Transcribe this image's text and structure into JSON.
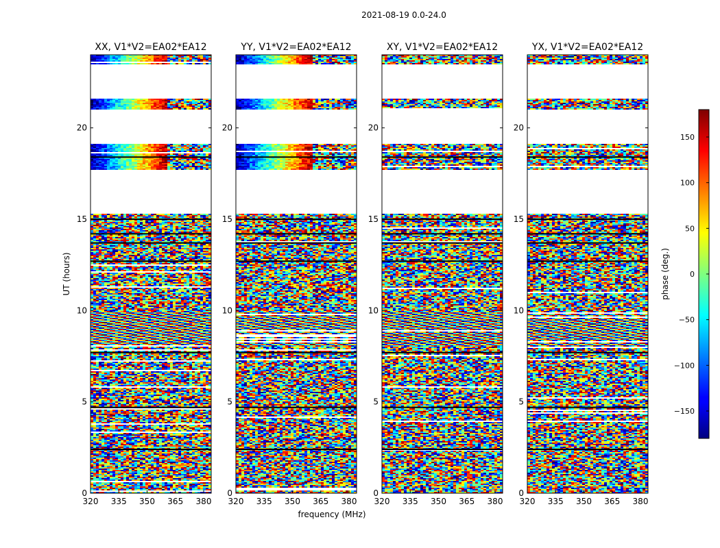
{
  "figure": {
    "suptitle": "2021-08-19 0.0-24.0",
    "xlabel": "frequency (MHz)",
    "ylabel": "UT (hours)"
  },
  "colorbar": {
    "label": "phase (deg.)",
    "range": [
      -180,
      180
    ],
    "ticks": [
      150,
      100,
      50,
      0,
      -50,
      -100,
      -150
    ],
    "tick_labels": [
      "150",
      "100",
      "50",
      "0",
      "−50",
      "−100",
      "−150"
    ],
    "colormap": "jet"
  },
  "chart_data": {
    "type": "heatmap",
    "xlim": [
      320,
      384
    ],
    "ylim": [
      0,
      24
    ],
    "x_ticks": [
      320,
      335,
      350,
      365,
      380
    ],
    "x_tick_labels": [
      "320",
      "335",
      "350",
      "365",
      "380"
    ],
    "y_ticks": [
      0,
      5,
      10,
      15,
      20
    ],
    "y_tick_labels": [
      "0",
      "5",
      "10",
      "15",
      "20"
    ],
    "gaps_hours": [
      [
        19.1,
        21.0
      ],
      [
        21.6,
        23.5
      ],
      [
        15.3,
        17.7
      ]
    ],
    "panels": [
      {
        "title": "XX, V1*V2=EA02*EA12",
        "correlation": "parallel"
      },
      {
        "title": "YY, V1*V2=EA02*EA12",
        "correlation": "parallel"
      },
      {
        "title": "XY, V1*V2=EA02*EA12",
        "correlation": "cross"
      },
      {
        "title": "YX, V1*V2=EA02*EA12",
        "correlation": "cross"
      }
    ]
  }
}
